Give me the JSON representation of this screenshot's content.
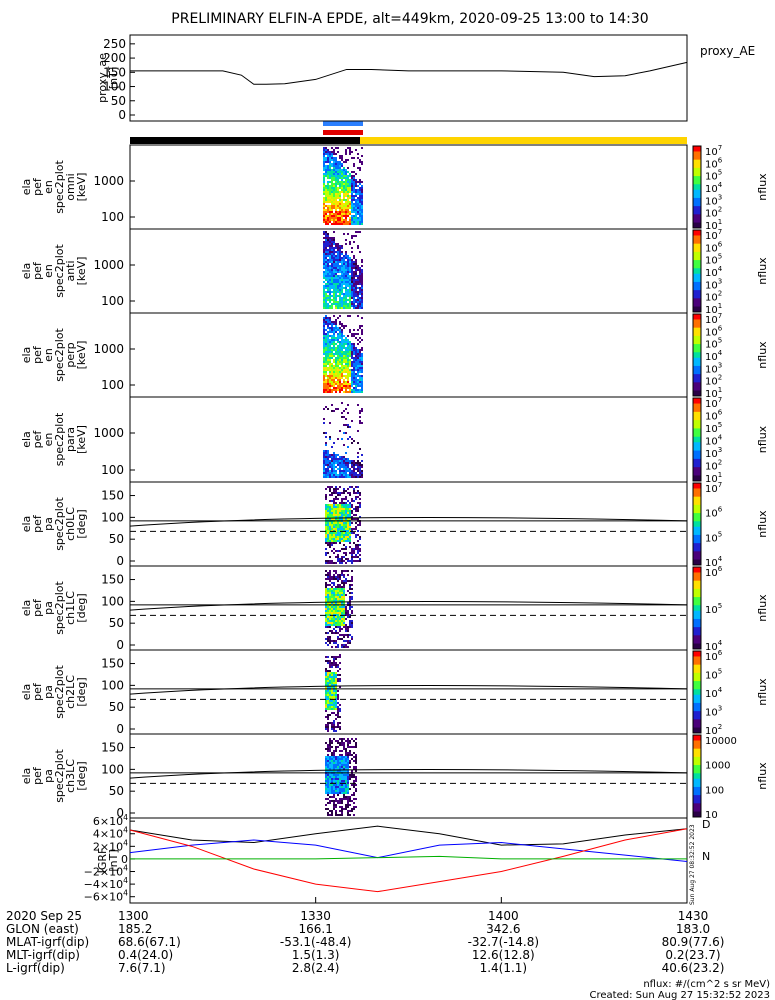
{
  "title": "PRELIMINARY ELFIN-A EPDE, alt=449km, 2020-09-25 13:00 to 14:30",
  "chart_data": [
    {
      "type": "line",
      "panel": "proxy_ae",
      "legend": "proxy_AE",
      "ylabel": [
        "proxy_ae",
        "[nT]"
      ],
      "ylim": [
        0,
        260
      ],
      "yticks": [
        0,
        50,
        100,
        150,
        200,
        250
      ],
      "x_minutes": [
        0,
        15,
        18,
        20,
        22,
        25,
        30,
        35,
        39,
        45,
        60,
        70,
        75,
        80,
        84,
        90
      ],
      "values": [
        155,
        155,
        140,
        108,
        108,
        110,
        125,
        160,
        160,
        155,
        155,
        150,
        135,
        138,
        155,
        185
      ]
    },
    {
      "type": "heatmap",
      "panel": "omni",
      "ylabel": [
        "ela",
        "pef",
        "en",
        "spec2plot",
        "omni",
        "[keV]"
      ],
      "yticks": [
        "100",
        "1000"
      ],
      "colorbar": {
        "label": "nflux",
        "ticks": [
          "10",
          "10",
          "10",
          "10",
          "10",
          "10",
          "10"
        ],
        "exponents": [
          "1",
          "2",
          "3",
          "4",
          "5",
          "6",
          "7"
        ]
      }
    },
    {
      "type": "heatmap",
      "panel": "anti",
      "ylabel": [
        "ela",
        "pef",
        "en",
        "spec2plot",
        "anti",
        "[keV]"
      ],
      "yticks": [
        "100",
        "1000"
      ],
      "colorbar": {
        "label": "nflux",
        "ticks": [
          "10",
          "10",
          "10",
          "10",
          "10",
          "10",
          "10"
        ],
        "exponents": [
          "1",
          "2",
          "3",
          "4",
          "5",
          "6",
          "7"
        ]
      }
    },
    {
      "type": "heatmap",
      "panel": "perp",
      "ylabel": [
        "ela",
        "pef",
        "en",
        "spec2plot",
        "perp",
        "[keV]"
      ],
      "yticks": [
        "100",
        "1000"
      ],
      "colorbar": {
        "label": "nflux",
        "ticks": [
          "10",
          "10",
          "10",
          "10",
          "10",
          "10",
          "10"
        ],
        "exponents": [
          "1",
          "2",
          "3",
          "4",
          "5",
          "6",
          "7"
        ]
      }
    },
    {
      "type": "heatmap",
      "panel": "para",
      "ylabel": [
        "ela",
        "pef",
        "en",
        "spec2plot",
        "para",
        "[keV]"
      ],
      "yticks": [
        "100",
        "1000"
      ],
      "colorbar": {
        "label": "nflux",
        "ticks": [
          "10",
          "10",
          "10",
          "10",
          "10",
          "10",
          "10"
        ],
        "exponents": [
          "1",
          "2",
          "3",
          "4",
          "5",
          "6",
          "7"
        ]
      }
    },
    {
      "type": "heatmap",
      "panel": "ch0LC",
      "ylabel": [
        "ela",
        "pef",
        "pa",
        "spec2plot",
        "ch0LC",
        "[deg]"
      ],
      "yticks": [
        "0",
        "50",
        "100",
        "150"
      ],
      "colorbar": {
        "label": "nflux",
        "ticks": [
          "10",
          "10",
          "10",
          "10"
        ],
        "exponents": [
          "4",
          "5",
          "6",
          "7"
        ]
      }
    },
    {
      "type": "heatmap",
      "panel": "ch1LC",
      "ylabel": [
        "ela",
        "pef",
        "pa",
        "spec2plot",
        "ch1LC",
        "[deg]"
      ],
      "yticks": [
        "0",
        "50",
        "100",
        "150"
      ],
      "colorbar": {
        "label": "nflux",
        "ticks": [
          "10",
          "10",
          "10"
        ],
        "exponents": [
          "4",
          "5",
          "6"
        ]
      }
    },
    {
      "type": "heatmap",
      "panel": "ch2LC",
      "ylabel": [
        "ela",
        "pef",
        "pa",
        "spec2plot",
        "ch2LC",
        "[deg]"
      ],
      "yticks": [
        "0",
        "50",
        "100",
        "150"
      ],
      "colorbar": {
        "label": "nflux",
        "ticks": [
          "10",
          "10",
          "10",
          "10",
          "10"
        ],
        "exponents": [
          "2",
          "3",
          "4",
          "5",
          "6"
        ]
      }
    },
    {
      "type": "heatmap",
      "panel": "ch3LC",
      "ylabel": [
        "ela",
        "pef",
        "pa",
        "spec2plot",
        "ch3LC",
        "[deg]"
      ],
      "yticks": [
        "0",
        "50",
        "100",
        "150"
      ],
      "colorbar": {
        "label": "nflux",
        "ticks": [
          "10",
          "100",
          "1000",
          "10000"
        ]
      }
    },
    {
      "type": "line",
      "panel": "IGRF",
      "ylabel": [
        "IGRF",
        "[nT]"
      ],
      "ylim": [
        -70000,
        65000
      ],
      "yticks": [
        "6×10",
        "4×10",
        "2×10",
        "0",
        "−2×10",
        "−4×10",
        "−6×10"
      ],
      "ytick_exponents": [
        "4",
        "4",
        "4",
        "",
        "4",
        "4",
        "4"
      ],
      "series_labels": [
        "D",
        "N"
      ],
      "x_minutes": [
        0,
        10,
        20,
        30,
        40,
        50,
        60,
        70,
        80,
        90
      ],
      "series": [
        {
          "color": "#000000",
          "values": [
            46000,
            30000,
            26000,
            40000,
            52000,
            40000,
            22000,
            24000,
            38000,
            48000
          ]
        },
        {
          "color": "#0000ff",
          "values": [
            10000,
            22000,
            30000,
            22000,
            2000,
            22000,
            26000,
            16000,
            6000,
            -4000
          ]
        },
        {
          "color": "#ff0000",
          "values": [
            46000,
            20000,
            -16000,
            -40000,
            -52000,
            -36000,
            -20000,
            4000,
            30000,
            48000
          ]
        },
        {
          "color": "#00b000",
          "values": [
            0,
            0,
            0,
            0,
            2000,
            4000,
            0,
            0,
            0,
            0
          ]
        }
      ]
    }
  ],
  "xaxis": {
    "rows": [
      {
        "label": "2020 Sep 25",
        "values": [
          "1300",
          "1330",
          "1400",
          "1430"
        ]
      },
      {
        "label": "GLON (east)",
        "values": [
          "185.2",
          "166.1",
          "342.6",
          "183.0"
        ]
      },
      {
        "label": "MLAT-igrf(dip)",
        "values": [
          "68.6(67.1)",
          "-53.1(-48.4)",
          "-32.7(-14.8)",
          "80.9(77.6)"
        ]
      },
      {
        "label": "MLT-igrf(dip)",
        "values": [
          "0.4(24.0)",
          "1.5(1.3)",
          "12.6(12.8)",
          "0.2(23.7)"
        ]
      },
      {
        "label": "L-igrf(dip)",
        "values": [
          "7.6(7.1)",
          "2.8(2.4)",
          "1.4(1.1)",
          "40.6(23.2)"
        ]
      }
    ]
  },
  "footer": {
    "units": "nflux: #/(cm^2 s sr MeV)",
    "created": "Created: Sun Aug 27 15:32:52 2023",
    "side_stamp": "Sun Aug 27 08:32:52 2023"
  }
}
